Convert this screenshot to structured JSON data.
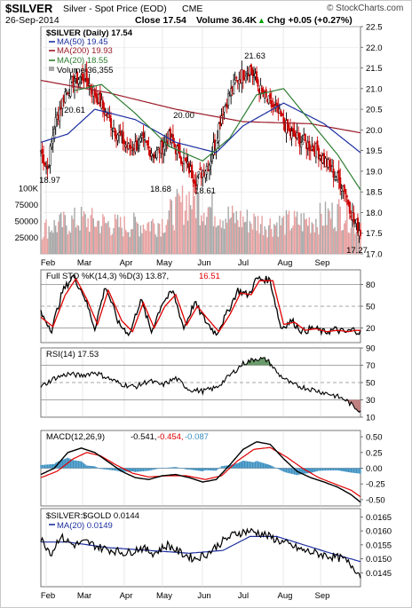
{
  "header": {
    "ticker": "$SILVER",
    "name": "Silver - Spot Price (EOD)",
    "exchange": "CME",
    "source": "© StockCharts.com",
    "date": "26-Sep-2014",
    "close": "Close 17.54",
    "volume": "Volume 36.4K",
    "change": "Chg +0.05 (+0.27%)",
    "change_arrow": "▲"
  },
  "colors": {
    "up_bar": "#000000",
    "down_bar": "#cc0000",
    "ma50": "#1c2fa0",
    "ma200": "#9a1b2a",
    "ma20": "#2e7d32",
    "volume_up": "#a8a8a8",
    "volume_down": "#e8a0a0",
    "sto_k": "#000000",
    "sto_d": "#e00000",
    "rsi": "#000000",
    "macd": "#000000",
    "macd_signal": "#e00000",
    "histogram": "#3a8fc0",
    "ratio": "#000000",
    "ratio_ma": "#1c2fa0"
  },
  "chart_data": [
    {
      "type": "candlestick",
      "panel": "price",
      "legend": [
        "$SILVER (Daily) 17.54",
        "MA(50) 19.45",
        "MA(200) 19.93",
        "MA(20) 18.55",
        "Volume 36,355"
      ],
      "ylim": [
        17.0,
        22.5
      ],
      "y_ticks": [
        "22.5",
        "22.0",
        "21.5",
        "21.0",
        "20.5",
        "20.0",
        "19.5",
        "19.0",
        "18.5",
        "18.0",
        "17.5",
        "17.0"
      ],
      "x_ticks": [
        "Feb",
        "Mar",
        "Apr",
        "May",
        "Jun",
        "Jul",
        "Aug",
        "Sep"
      ],
      "annotations": [
        "18.97",
        "20.61",
        "20.00",
        "18.68",
        "18.61",
        "21.63",
        "17.27"
      ],
      "close_keypoints": [
        {
          "day": 0,
          "close": 19.5
        },
        {
          "day": 5,
          "close": 19.05
        },
        {
          "day": 10,
          "close": 20.1
        },
        {
          "day": 18,
          "close": 20.9
        },
        {
          "day": 25,
          "close": 21.2
        },
        {
          "day": 32,
          "close": 21.3
        },
        {
          "day": 38,
          "close": 21.0
        },
        {
          "day": 45,
          "close": 20.6
        },
        {
          "day": 55,
          "close": 20.0
        },
        {
          "day": 65,
          "close": 19.55
        },
        {
          "day": 75,
          "close": 19.7
        },
        {
          "day": 85,
          "close": 19.4
        },
        {
          "day": 95,
          "close": 19.8
        },
        {
          "day": 105,
          "close": 19.3
        },
        {
          "day": 115,
          "close": 18.8
        },
        {
          "day": 125,
          "close": 19.2
        },
        {
          "day": 135,
          "close": 20.5
        },
        {
          "day": 145,
          "close": 21.2
        },
        {
          "day": 155,
          "close": 21.5
        },
        {
          "day": 165,
          "close": 20.8
        },
        {
          "day": 175,
          "close": 20.45
        },
        {
          "day": 185,
          "close": 19.9
        },
        {
          "day": 195,
          "close": 19.7
        },
        {
          "day": 205,
          "close": 19.5
        },
        {
          "day": 215,
          "close": 19.05
        },
        {
          "day": 225,
          "close": 18.6
        },
        {
          "day": 232,
          "close": 17.8
        },
        {
          "day": 237,
          "close": 17.54
        }
      ],
      "ma50_keypoints": [
        {
          "day": 0,
          "close": 19.7
        },
        {
          "day": 20,
          "close": 19.9
        },
        {
          "day": 40,
          "close": 20.5
        },
        {
          "day": 70,
          "close": 20.25
        },
        {
          "day": 100,
          "close": 19.7
        },
        {
          "day": 130,
          "close": 19.45
        },
        {
          "day": 150,
          "close": 20.1
        },
        {
          "day": 180,
          "close": 20.65
        },
        {
          "day": 210,
          "close": 20.15
        },
        {
          "day": 237,
          "close": 19.45
        }
      ],
      "ma200_keypoints": [
        {
          "day": 0,
          "close": 21.2
        },
        {
          "day": 50,
          "close": 20.9
        },
        {
          "day": 100,
          "close": 20.5
        },
        {
          "day": 150,
          "close": 20.2
        },
        {
          "day": 200,
          "close": 20.15
        },
        {
          "day": 237,
          "close": 19.93
        }
      ],
      "ma20_keypoints": [
        {
          "day": 25,
          "close": 20.95
        },
        {
          "day": 45,
          "close": 21.1
        },
        {
          "day": 70,
          "close": 20.4
        },
        {
          "day": 95,
          "close": 19.6
        },
        {
          "day": 120,
          "close": 19.25
        },
        {
          "day": 140,
          "close": 19.8
        },
        {
          "day": 160,
          "close": 20.85
        },
        {
          "day": 180,
          "close": 21.0
        },
        {
          "day": 200,
          "close": 20.2
        },
        {
          "day": 220,
          "close": 19.4
        },
        {
          "day": 237,
          "close": 18.55
        }
      ]
    },
    {
      "type": "bar",
      "panel": "volume",
      "y_ticks": [
        "100K",
        "75000",
        "50000",
        "25000"
      ],
      "ylim": [
        0,
        100000
      ],
      "volume_keypoints": [
        {
          "day": 0,
          "v": 38000
        },
        {
          "day": 30,
          "v": 52000
        },
        {
          "day": 60,
          "v": 42000
        },
        {
          "day": 90,
          "v": 48000
        },
        {
          "day": 110,
          "v": 85000
        },
        {
          "day": 140,
          "v": 55000
        },
        {
          "day": 170,
          "v": 45000
        },
        {
          "day": 200,
          "v": 50000
        },
        {
          "day": 225,
          "v": 65000
        },
        {
          "day": 237,
          "v": 36355
        }
      ]
    },
    {
      "type": "line",
      "panel": "stochastic",
      "legend": [
        "Full STO %K(14,3) %D(3) 13.87,",
        "16.51"
      ],
      "ylim": [
        0,
        100
      ],
      "y_ticks": [
        "80",
        "50",
        "20"
      ],
      "k_keypoints": [
        {
          "day": 0,
          "v": 40
        },
        {
          "day": 8,
          "v": 18
        },
        {
          "day": 16,
          "v": 70
        },
        {
          "day": 24,
          "v": 92
        },
        {
          "day": 32,
          "v": 65
        },
        {
          "day": 40,
          "v": 20
        },
        {
          "day": 48,
          "v": 78
        },
        {
          "day": 58,
          "v": 25
        },
        {
          "day": 66,
          "v": 12
        },
        {
          "day": 74,
          "v": 60
        },
        {
          "day": 82,
          "v": 15
        },
        {
          "day": 90,
          "v": 55
        },
        {
          "day": 98,
          "v": 70
        },
        {
          "day": 106,
          "v": 20
        },
        {
          "day": 114,
          "v": 55
        },
        {
          "day": 122,
          "v": 30
        },
        {
          "day": 130,
          "v": 12
        },
        {
          "day": 138,
          "v": 40
        },
        {
          "day": 146,
          "v": 72
        },
        {
          "day": 154,
          "v": 65
        },
        {
          "day": 160,
          "v": 88
        },
        {
          "day": 170,
          "v": 86
        },
        {
          "day": 178,
          "v": 20
        },
        {
          "day": 186,
          "v": 30
        },
        {
          "day": 194,
          "v": 15
        },
        {
          "day": 202,
          "v": 20
        },
        {
          "day": 210,
          "v": 14
        },
        {
          "day": 218,
          "v": 18
        },
        {
          "day": 226,
          "v": 14
        },
        {
          "day": 232,
          "v": 18
        },
        {
          "day": 237,
          "v": 13.87
        }
      ],
      "d_keypoints": [
        {
          "day": 0,
          "v": 35
        },
        {
          "day": 9,
          "v": 22
        },
        {
          "day": 18,
          "v": 65
        },
        {
          "day": 26,
          "v": 88
        },
        {
          "day": 34,
          "v": 60
        },
        {
          "day": 42,
          "v": 25
        },
        {
          "day": 50,
          "v": 72
        },
        {
          "day": 60,
          "v": 30
        },
        {
          "day": 68,
          "v": 15
        },
        {
          "day": 76,
          "v": 55
        },
        {
          "day": 84,
          "v": 20
        },
        {
          "day": 92,
          "v": 50
        },
        {
          "day": 100,
          "v": 66
        },
        {
          "day": 108,
          "v": 24
        },
        {
          "day": 116,
          "v": 50
        },
        {
          "day": 124,
          "v": 32
        },
        {
          "day": 132,
          "v": 15
        },
        {
          "day": 140,
          "v": 38
        },
        {
          "day": 148,
          "v": 68
        },
        {
          "day": 156,
          "v": 66
        },
        {
          "day": 162,
          "v": 85
        },
        {
          "day": 172,
          "v": 85
        },
        {
          "day": 180,
          "v": 25
        },
        {
          "day": 188,
          "v": 28
        },
        {
          "day": 196,
          "v": 17
        },
        {
          "day": 204,
          "v": 19
        },
        {
          "day": 212,
          "v": 15
        },
        {
          "day": 220,
          "v": 17
        },
        {
          "day": 228,
          "v": 15
        },
        {
          "day": 234,
          "v": 17
        },
        {
          "day": 237,
          "v": 16.51
        }
      ]
    },
    {
      "type": "line",
      "panel": "rsi",
      "legend": [
        "RSI(14) 17.53"
      ],
      "ylim": [
        10,
        90
      ],
      "y_ticks": [
        "90",
        "70",
        "50",
        "30",
        "10"
      ],
      "rsi_keypoints": [
        {
          "day": 0,
          "v": 45
        },
        {
          "day": 10,
          "v": 55
        },
        {
          "day": 20,
          "v": 60
        },
        {
          "day": 30,
          "v": 58
        },
        {
          "day": 40,
          "v": 62
        },
        {
          "day": 50,
          "v": 55
        },
        {
          "day": 60,
          "v": 48
        },
        {
          "day": 70,
          "v": 45
        },
        {
          "day": 80,
          "v": 52
        },
        {
          "day": 90,
          "v": 47
        },
        {
          "day": 100,
          "v": 55
        },
        {
          "day": 110,
          "v": 42
        },
        {
          "day": 120,
          "v": 40
        },
        {
          "day": 130,
          "v": 44
        },
        {
          "day": 140,
          "v": 58
        },
        {
          "day": 150,
          "v": 72
        },
        {
          "day": 160,
          "v": 78
        },
        {
          "day": 168,
          "v": 76
        },
        {
          "day": 176,
          "v": 60
        },
        {
          "day": 186,
          "v": 48
        },
        {
          "day": 196,
          "v": 44
        },
        {
          "day": 206,
          "v": 40
        },
        {
          "day": 216,
          "v": 36
        },
        {
          "day": 226,
          "v": 30
        },
        {
          "day": 232,
          "v": 22
        },
        {
          "day": 237,
          "v": 17.53
        }
      ]
    },
    {
      "type": "line",
      "panel": "macd",
      "legend": [
        "MACD(12,26,9)",
        "-0.541,",
        "-0.454,",
        "-0.087"
      ],
      "ylim": [
        -0.6,
        0.6
      ],
      "y_ticks": [
        "0.50",
        "0.25",
        "0.00",
        "-0.25",
        "-0.50"
      ],
      "macd_keypoints": [
        {
          "day": 0,
          "v": -0.1
        },
        {
          "day": 10,
          "v": 0.0
        },
        {
          "day": 20,
          "v": 0.25
        },
        {
          "day": 30,
          "v": 0.32
        },
        {
          "day": 40,
          "v": 0.25
        },
        {
          "day": 50,
          "v": 0.1
        },
        {
          "day": 60,
          "v": -0.05
        },
        {
          "day": 70,
          "v": -0.15
        },
        {
          "day": 80,
          "v": -0.18
        },
        {
          "day": 90,
          "v": -0.12
        },
        {
          "day": 100,
          "v": -0.1
        },
        {
          "day": 110,
          "v": -0.15
        },
        {
          "day": 120,
          "v": -0.22
        },
        {
          "day": 130,
          "v": -0.18
        },
        {
          "day": 140,
          "v": 0.05
        },
        {
          "day": 150,
          "v": 0.3
        },
        {
          "day": 160,
          "v": 0.42
        },
        {
          "day": 170,
          "v": 0.38
        },
        {
          "day": 180,
          "v": 0.15
        },
        {
          "day": 190,
          "v": -0.05
        },
        {
          "day": 200,
          "v": -0.15
        },
        {
          "day": 210,
          "v": -0.22
        },
        {
          "day": 220,
          "v": -0.3
        },
        {
          "day": 230,
          "v": -0.42
        },
        {
          "day": 237,
          "v": -0.541
        }
      ],
      "signal_keypoints": [
        {
          "day": 0,
          "v": -0.15
        },
        {
          "day": 12,
          "v": -0.05
        },
        {
          "day": 24,
          "v": 0.15
        },
        {
          "day": 34,
          "v": 0.25
        },
        {
          "day": 44,
          "v": 0.2
        },
        {
          "day": 56,
          "v": 0.05
        },
        {
          "day": 68,
          "v": -0.08
        },
        {
          "day": 80,
          "v": -0.14
        },
        {
          "day": 94,
          "v": -0.12
        },
        {
          "day": 108,
          "v": -0.12
        },
        {
          "day": 122,
          "v": -0.18
        },
        {
          "day": 134,
          "v": -0.12
        },
        {
          "day": 146,
          "v": 0.12
        },
        {
          "day": 158,
          "v": 0.3
        },
        {
          "day": 170,
          "v": 0.33
        },
        {
          "day": 182,
          "v": 0.18
        },
        {
          "day": 194,
          "v": 0.0
        },
        {
          "day": 206,
          "v": -0.15
        },
        {
          "day": 218,
          "v": -0.25
        },
        {
          "day": 230,
          "v": -0.35
        },
        {
          "day": 237,
          "v": -0.454
        }
      ]
    },
    {
      "type": "line",
      "panel": "ratio",
      "legend": [
        "$SILVER:$GOLD 0.0144",
        "MA(20) 0.0149"
      ],
      "ylim": [
        0.014,
        0.0168
      ],
      "y_ticks": [
        "0.0165",
        "0.0160",
        "0.0155",
        "0.0150",
        "0.0145"
      ],
      "ratio_keypoints": [
        {
          "day": 0,
          "v": 0.0157
        },
        {
          "day": 8,
          "v": 0.0152
        },
        {
          "day": 14,
          "v": 0.0158
        },
        {
          "day": 24,
          "v": 0.0155
        },
        {
          "day": 34,
          "v": 0.0156
        },
        {
          "day": 44,
          "v": 0.0154
        },
        {
          "day": 54,
          "v": 0.0153
        },
        {
          "day": 64,
          "v": 0.0152
        },
        {
          "day": 74,
          "v": 0.0154
        },
        {
          "day": 84,
          "v": 0.0152
        },
        {
          "day": 94,
          "v": 0.0155
        },
        {
          "day": 104,
          "v": 0.0152
        },
        {
          "day": 114,
          "v": 0.015
        },
        {
          "day": 124,
          "v": 0.0152
        },
        {
          "day": 134,
          "v": 0.0156
        },
        {
          "day": 144,
          "v": 0.0159
        },
        {
          "day": 154,
          "v": 0.016
        },
        {
          "day": 164,
          "v": 0.0159
        },
        {
          "day": 174,
          "v": 0.0157
        },
        {
          "day": 184,
          "v": 0.0155
        },
        {
          "day": 194,
          "v": 0.0153
        },
        {
          "day": 204,
          "v": 0.0152
        },
        {
          "day": 214,
          "v": 0.0151
        },
        {
          "day": 224,
          "v": 0.015
        },
        {
          "day": 232,
          "v": 0.0147
        },
        {
          "day": 237,
          "v": 0.0144
        }
      ],
      "ratio_ma_keypoints": [
        {
          "day": 0,
          "v": 0.0156
        },
        {
          "day": 20,
          "v": 0.0156
        },
        {
          "day": 50,
          "v": 0.0154
        },
        {
          "day": 80,
          "v": 0.0153
        },
        {
          "day": 110,
          "v": 0.0152
        },
        {
          "day": 135,
          "v": 0.0153
        },
        {
          "day": 155,
          "v": 0.0158
        },
        {
          "day": 175,
          "v": 0.0158
        },
        {
          "day": 195,
          "v": 0.0155
        },
        {
          "day": 215,
          "v": 0.0152
        },
        {
          "day": 237,
          "v": 0.0149
        }
      ]
    }
  ]
}
